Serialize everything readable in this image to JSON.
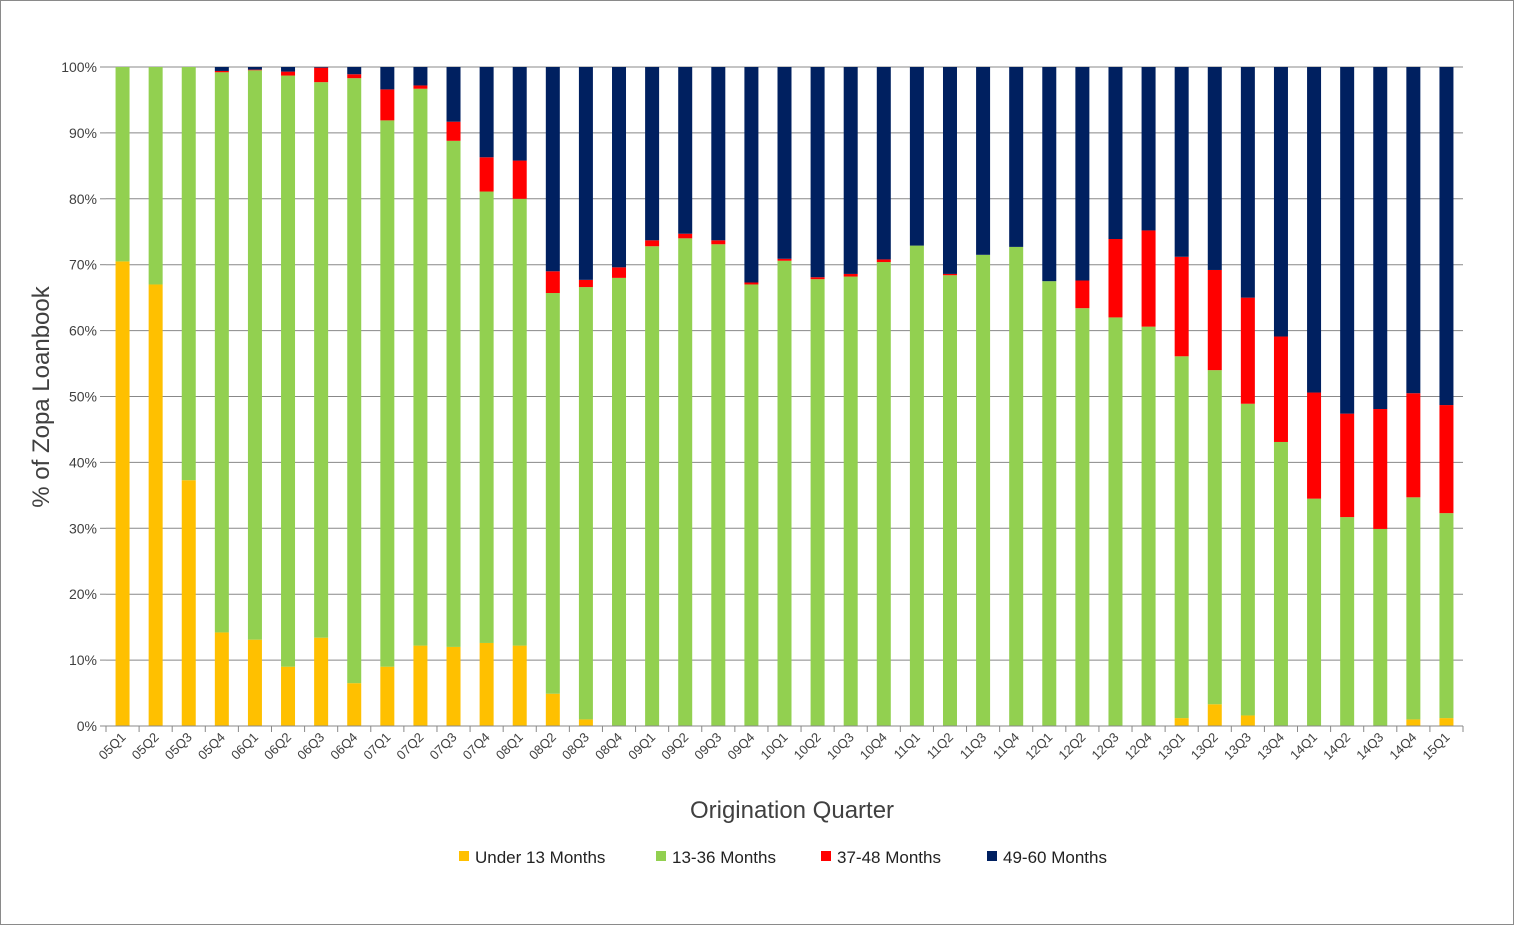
{
  "chart_data": {
    "type": "stacked-bar",
    "title": "",
    "xlabel": "Origination Quarter",
    "ylabel": "% of Zopa Loanbook",
    "ylim": [
      0,
      100
    ],
    "yticks": [
      "0%",
      "10%",
      "20%",
      "30%",
      "40%",
      "50%",
      "60%",
      "70%",
      "80%",
      "90%",
      "100%"
    ],
    "grid": true,
    "legend_position": "bottom",
    "categories": [
      "05Q1",
      "05Q2",
      "05Q3",
      "05Q4",
      "06Q1",
      "06Q2",
      "06Q3",
      "06Q4",
      "07Q1",
      "07Q2",
      "07Q3",
      "07Q4",
      "08Q1",
      "08Q2",
      "08Q3",
      "08Q4",
      "09Q1",
      "09Q2",
      "09Q3",
      "09Q4",
      "10Q1",
      "10Q2",
      "10Q3",
      "10Q4",
      "11Q1",
      "11Q2",
      "11Q3",
      "11Q4",
      "12Q1",
      "12Q2",
      "12Q3",
      "12Q4",
      "13Q1",
      "13Q2",
      "13Q3",
      "13Q4",
      "14Q1",
      "14Q2",
      "14Q3",
      "14Q4",
      "15Q1"
    ],
    "series": [
      {
        "name": "Under 13 Months",
        "color": "#FFC000",
        "values": [
          70.5,
          67,
          37.3,
          14.2,
          13.1,
          9,
          13.4,
          6.5,
          9,
          12.2,
          12,
          12.6,
          12.2,
          4.9,
          1,
          0,
          0,
          0,
          0,
          0,
          0,
          0,
          0,
          0,
          0,
          0,
          0,
          0,
          0,
          0,
          0,
          0,
          1.2,
          3.3,
          1.6,
          0,
          0,
          0,
          0,
          1,
          1.2
        ]
      },
      {
        "name": "13-36 Months",
        "color": "#92D050",
        "values": [
          29.5,
          33,
          62.7,
          85,
          86.4,
          89.7,
          84.3,
          91.8,
          82.9,
          84.5,
          76.8,
          68.5,
          67.8,
          60.8,
          65.6,
          68,
          72.8,
          74,
          73.1,
          67,
          70.6,
          67.8,
          68.2,
          70.4,
          72.9,
          68.4,
          71.5,
          72.7,
          67.5,
          63.4,
          62,
          60.6,
          54.9,
          50.7,
          47.3,
          43.1,
          34.5,
          31.7,
          29.9,
          33.7,
          31.1
        ]
      },
      {
        "name": "37-48 Months",
        "color": "#FF0000",
        "values": [
          0,
          0,
          0,
          0.2,
          0.1,
          0.6,
          2.2,
          0.6,
          4.7,
          0.5,
          2.9,
          5.2,
          5.8,
          3.3,
          1.1,
          1.6,
          0.9,
          0.7,
          0.6,
          0.3,
          0.3,
          0.3,
          0.4,
          0.4,
          0,
          0.2,
          0,
          0,
          0,
          4.2,
          11.9,
          14.6,
          15.1,
          15.2,
          16.1,
          16,
          16.1,
          15.7,
          18.2,
          15.8,
          16.4
        ]
      },
      {
        "name": "49-60 Months",
        "color": "#002060",
        "values": [
          0,
          0,
          0,
          0.6,
          0.4,
          0.7,
          0.1,
          1.1,
          3.4,
          2.8,
          8.3,
          13.7,
          14.2,
          31,
          32.3,
          30.4,
          26.3,
          25.3,
          26.3,
          32.7,
          29.1,
          31.9,
          31.4,
          29.2,
          27.1,
          31.4,
          28.5,
          27.3,
          32.5,
          32.4,
          26.1,
          24.8,
          28.8,
          30.8,
          35,
          40.9,
          49.4,
          52.6,
          51.9,
          49.5,
          51.3
        ]
      }
    ]
  }
}
